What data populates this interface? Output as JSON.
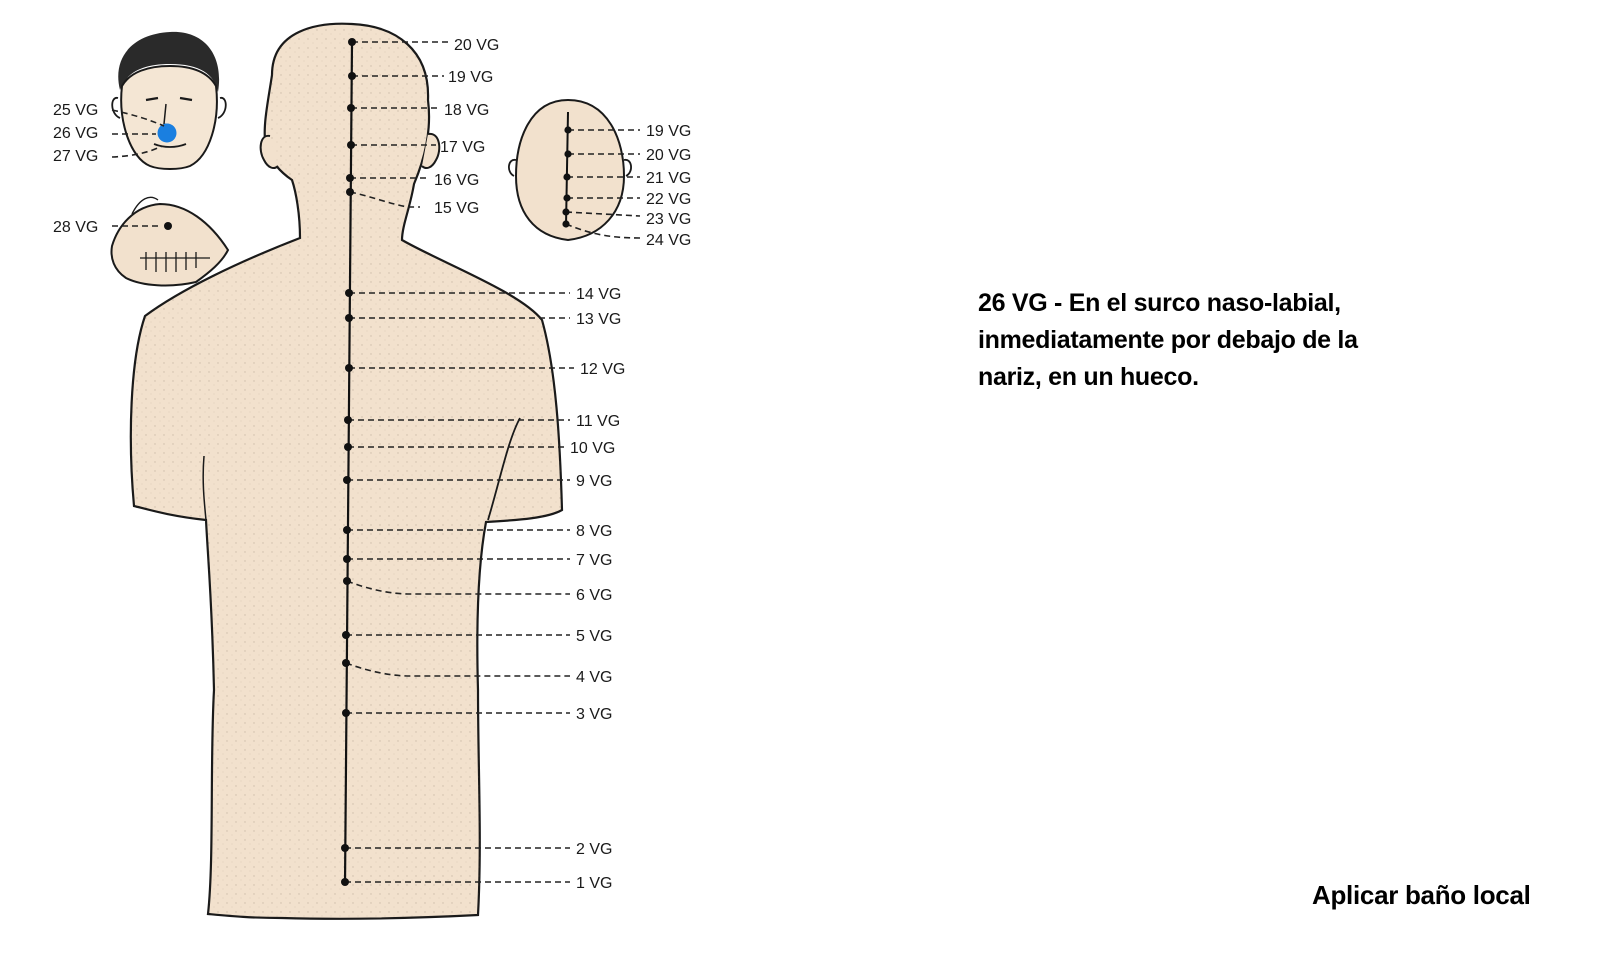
{
  "description": {
    "lines": [
      "26 VG - En el surco naso-labial,",
      "inmediatamente por debajo de la",
      "nariz, en un hueco."
    ]
  },
  "instruction": "Aplicar baño local",
  "colors": {
    "skin": "#f2e1cd",
    "highlight": "#1a7fe0",
    "outline": "#1a1a1a"
  },
  "points": {
    "body": [
      "1 VG",
      "2 VG",
      "3 VG",
      "4 VG",
      "5 VG",
      "6 VG",
      "7 VG",
      "8 VG",
      "9 VG",
      "10 VG",
      "11 VG",
      "12 VG",
      "13 VG",
      "14 VG",
      "15 VG",
      "16 VG",
      "17 VG",
      "18 VG",
      "19 VG",
      "20 VG"
    ],
    "face": [
      "25 VG",
      "26 VG",
      "27 VG",
      "28 VG"
    ],
    "head_top": [
      "19 VG",
      "20 VG",
      "21 VG",
      "22 VG",
      "23 VG",
      "24 VG"
    ]
  },
  "highlighted_point": "26 VG"
}
